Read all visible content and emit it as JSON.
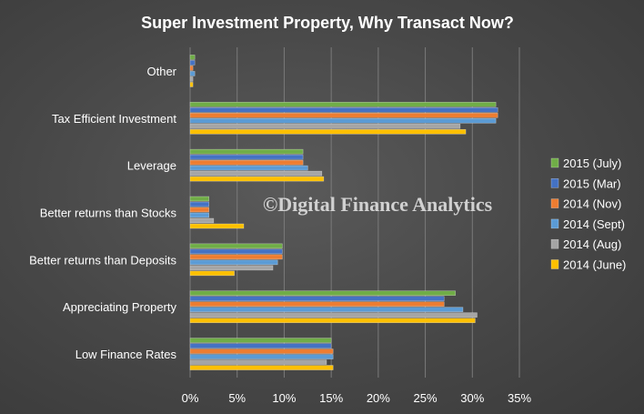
{
  "watermark": "©Digital Finance Analytics",
  "colors": {
    "2015 (July)": "#70ad47",
    "2015 (Mar)": "#4472c4",
    "2014 (Nov)": "#ed7d31",
    "2014 (Sept)": "#5b9bd5",
    "2014 (Aug)": "#a5a5a5",
    "2014 (June)": "#ffc000"
  },
  "chart_data": {
    "type": "bar",
    "orientation": "horizontal",
    "title": "Super  Investment  Property,  Why  Transact  Now?",
    "categories": [
      "Other",
      "Tax Efficient Investment",
      "Leverage",
      "Better returns than Stocks",
      "Better returns than Deposits",
      "Appreciating Property",
      "Low Finance Rates"
    ],
    "series": [
      {
        "name": "2015 (July)",
        "values": [
          0.5,
          32.5,
          12.0,
          2.0,
          9.8,
          28.2,
          15.0
        ]
      },
      {
        "name": "2015 (Mar)",
        "values": [
          0.5,
          32.7,
          12.0,
          2.0,
          9.8,
          27.0,
          15.0
        ]
      },
      {
        "name": "2014 (Nov)",
        "values": [
          0.3,
          32.7,
          12.0,
          2.0,
          9.8,
          27.0,
          15.2
        ]
      },
      {
        "name": "2014 (Sept)",
        "values": [
          0.5,
          32.5,
          12.5,
          2.0,
          9.3,
          29.0,
          15.2
        ]
      },
      {
        "name": "2014 (Aug)",
        "values": [
          0.3,
          28.7,
          14.0,
          2.5,
          8.8,
          30.5,
          14.5
        ]
      },
      {
        "name": "2014 (June)",
        "values": [
          0.3,
          29.3,
          14.2,
          5.7,
          4.7,
          30.3,
          15.2
        ]
      }
    ],
    "xticks": [
      "0%",
      "5%",
      "10%",
      "15%",
      "20%",
      "25%",
      "30%",
      "35%"
    ],
    "xlim": [
      0,
      35
    ],
    "grid": true,
    "legend_position": "right"
  }
}
